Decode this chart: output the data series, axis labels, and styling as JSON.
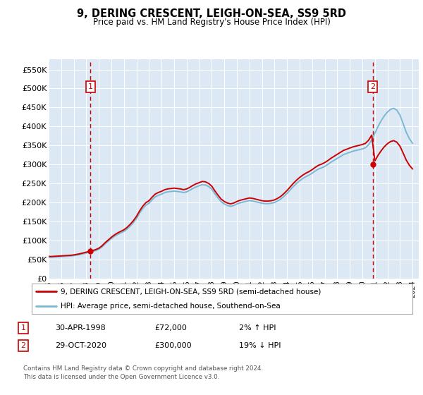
{
  "title": "9, DERING CRESCENT, LEIGH-ON-SEA, SS9 5RD",
  "subtitle": "Price paid vs. HM Land Registry's House Price Index (HPI)",
  "legend_line1": "9, DERING CRESCENT, LEIGH-ON-SEA, SS9 5RD (semi-detached house)",
  "legend_line2": "HPI: Average price, semi-detached house, Southend-on-Sea",
  "footnote": "Contains HM Land Registry data © Crown copyright and database right 2024.\nThis data is licensed under the Open Government Licence v3.0.",
  "annotation1_date": "30-APR-1998",
  "annotation1_price": "£72,000",
  "annotation1_hpi": "2% ↑ HPI",
  "annotation2_date": "29-OCT-2020",
  "annotation2_price": "£300,000",
  "annotation2_hpi": "19% ↓ HPI",
  "hpi_color": "#7bb8d4",
  "price_color": "#cc0000",
  "dashed_color": "#cc0000",
  "background_color": "#dce9f5",
  "ylim_min": 0,
  "ylim_max": 577000,
  "yticks": [
    0,
    50000,
    100000,
    150000,
    200000,
    250000,
    300000,
    350000,
    400000,
    450000,
    500000,
    550000
  ],
  "ytick_labels": [
    "£0",
    "£50K",
    "£100K",
    "£150K",
    "£200K",
    "£250K",
    "£300K",
    "£350K",
    "£400K",
    "£450K",
    "£500K",
    "£550K"
  ],
  "hpi_years": [
    1995.0,
    1995.25,
    1995.5,
    1995.75,
    1996.0,
    1996.25,
    1996.5,
    1996.75,
    1997.0,
    1997.25,
    1997.5,
    1997.75,
    1998.0,
    1998.25,
    1998.5,
    1998.75,
    1999.0,
    1999.25,
    1999.5,
    1999.75,
    2000.0,
    2000.25,
    2000.5,
    2000.75,
    2001.0,
    2001.25,
    2001.5,
    2001.75,
    2002.0,
    2002.25,
    2002.5,
    2002.75,
    2003.0,
    2003.25,
    2003.5,
    2003.75,
    2004.0,
    2004.25,
    2004.5,
    2004.75,
    2005.0,
    2005.25,
    2005.5,
    2005.75,
    2006.0,
    2006.25,
    2006.5,
    2006.75,
    2007.0,
    2007.25,
    2007.5,
    2007.75,
    2008.0,
    2008.25,
    2008.5,
    2008.75,
    2009.0,
    2009.25,
    2009.5,
    2009.75,
    2010.0,
    2010.25,
    2010.5,
    2010.75,
    2011.0,
    2011.25,
    2011.5,
    2011.75,
    2012.0,
    2012.25,
    2012.5,
    2012.75,
    2013.0,
    2013.25,
    2013.5,
    2013.75,
    2014.0,
    2014.25,
    2014.5,
    2014.75,
    2015.0,
    2015.25,
    2015.5,
    2015.75,
    2016.0,
    2016.25,
    2016.5,
    2016.75,
    2017.0,
    2017.25,
    2017.5,
    2017.75,
    2018.0,
    2018.25,
    2018.5,
    2018.75,
    2019.0,
    2019.25,
    2019.5,
    2019.75,
    2020.0,
    2020.25,
    2020.5,
    2020.75,
    2021.0,
    2021.25,
    2021.5,
    2021.75,
    2022.0,
    2022.25,
    2022.5,
    2022.75,
    2023.0,
    2023.25,
    2023.5,
    2023.75,
    2024.0
  ],
  "hpi_values": [
    56000,
    56000,
    56500,
    57000,
    57500,
    58000,
    58500,
    59000,
    60000,
    61500,
    63000,
    65000,
    67000,
    69000,
    71000,
    73500,
    77000,
    83000,
    91000,
    98000,
    105000,
    111000,
    116000,
    120000,
    124000,
    130000,
    138000,
    147000,
    158000,
    172000,
    184000,
    193000,
    198000,
    207000,
    215000,
    219000,
    222000,
    226000,
    228000,
    229000,
    230000,
    229000,
    228000,
    226000,
    228000,
    232000,
    237000,
    241000,
    244000,
    247000,
    246000,
    242000,
    235000,
    223000,
    212000,
    202000,
    196000,
    192000,
    190000,
    192000,
    196000,
    199000,
    201000,
    203000,
    205000,
    204000,
    202000,
    200000,
    198000,
    197000,
    197000,
    198000,
    200000,
    204000,
    209000,
    216000,
    224000,
    233000,
    242000,
    250000,
    257000,
    263000,
    268000,
    272000,
    277000,
    283000,
    288000,
    291000,
    295000,
    300000,
    306000,
    311000,
    316000,
    321000,
    326000,
    329000,
    332000,
    335000,
    337000,
    339000,
    341000,
    344000,
    352000,
    365000,
    382000,
    400000,
    415000,
    428000,
    438000,
    445000,
    448000,
    443000,
    430000,
    408000,
    385000,
    368000,
    356000
  ],
  "sale1_year": 1998.33,
  "sale1_price": 72000,
  "sale2_year": 2020.83,
  "sale2_price": 300000,
  "xlim_min": 1995.0,
  "xlim_max": 2024.5,
  "xticks": [
    1995,
    1996,
    1997,
    1998,
    1999,
    2000,
    2001,
    2002,
    2003,
    2004,
    2005,
    2006,
    2007,
    2008,
    2009,
    2010,
    2011,
    2012,
    2013,
    2014,
    2015,
    2016,
    2017,
    2018,
    2019,
    2020,
    2021,
    2022,
    2023,
    2024
  ]
}
